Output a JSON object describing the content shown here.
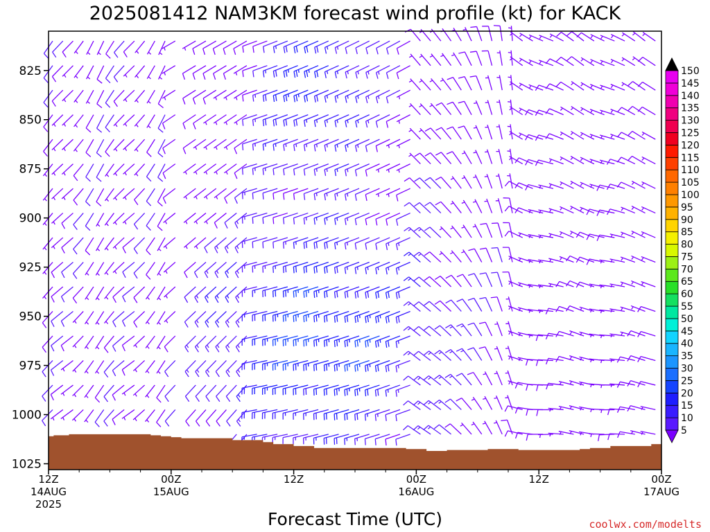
{
  "chart_data": {
    "type": "wind-profile",
    "title": "2025081412 NAM3KM forecast wind profile (kt) for KACK",
    "xlabel": "Forecast Time (UTC)",
    "ylabel": "",
    "y_ticks": [
      825,
      850,
      875,
      900,
      925,
      950,
      975,
      1000,
      1025
    ],
    "y_range": [
      805,
      1028
    ],
    "x_range_hours": [
      0,
      60
    ],
    "x_ticks": [
      {
        "hour": 0,
        "line1": "12Z",
        "line2": "14AUG",
        "line3": "2025"
      },
      {
        "hour": 12,
        "line1": "00Z",
        "line2": "15AUG",
        "line3": ""
      },
      {
        "hour": 24,
        "line1": "12Z",
        "line2": "",
        "line3": ""
      },
      {
        "hour": 36,
        "line1": "00Z",
        "line2": "16AUG",
        "line3": ""
      },
      {
        "hour": 48,
        "line1": "12Z",
        "line2": "",
        "line3": ""
      },
      {
        "hour": 60,
        "line1": "00Z",
        "line2": "17AUG",
        "line3": ""
      }
    ],
    "colorbar": {
      "levels": [
        5,
        10,
        15,
        20,
        25,
        30,
        35,
        40,
        45,
        50,
        55,
        60,
        65,
        70,
        75,
        80,
        85,
        90,
        95,
        100,
        105,
        110,
        115,
        120,
        125,
        130,
        135,
        140,
        145,
        150
      ],
      "colors": [
        "#7a00ff",
        "#5a1aff",
        "#3a1cff",
        "#1e1eff",
        "#1545ff",
        "#1a6fff",
        "#1b95ff",
        "#19b5ff",
        "#12d4ff",
        "#00f0d8",
        "#00e8a0",
        "#14e060",
        "#28e028",
        "#5ce81c",
        "#9cf014",
        "#d8f800",
        "#f5f000",
        "#ffd400",
        "#ffb200",
        "#ff9800",
        "#ff8000",
        "#ff6800",
        "#ff4000",
        "#ff1a00",
        "#f00020",
        "#f00050",
        "#f00080",
        "#f000b0",
        "#f000d8",
        "#e800f0"
      ]
    },
    "terrain_color": "#a0522d",
    "surface_pressure": [
      {
        "hour": 0,
        "p": 1011
      },
      {
        "hour": 0.5,
        "p": 1010.5
      },
      {
        "hour": 2,
        "p": 1010
      },
      {
        "hour": 10,
        "p": 1010.5
      },
      {
        "hour": 11,
        "p": 1011
      },
      {
        "hour": 12,
        "p": 1011.5
      },
      {
        "hour": 13,
        "p": 1012
      },
      {
        "hour": 18,
        "p": 1013
      },
      {
        "hour": 21,
        "p": 1014
      },
      {
        "hour": 22,
        "p": 1015
      },
      {
        "hour": 24,
        "p": 1016
      },
      {
        "hour": 26,
        "p": 1017
      },
      {
        "hour": 35,
        "p": 1017.5
      },
      {
        "hour": 37,
        "p": 1018.5
      },
      {
        "hour": 39,
        "p": 1018
      },
      {
        "hour": 43,
        "p": 1017.5
      },
      {
        "hour": 46,
        "p": 1018
      },
      {
        "hour": 52,
        "p": 1017.5
      },
      {
        "hour": 53,
        "p": 1017
      },
      {
        "hour": 55,
        "p": 1016
      },
      {
        "hour": 59,
        "p": 1015
      },
      {
        "hour": 60,
        "p": 1015
      }
    ],
    "wind_model_note": "",
    "credit": "coolwx.com/modelts"
  }
}
